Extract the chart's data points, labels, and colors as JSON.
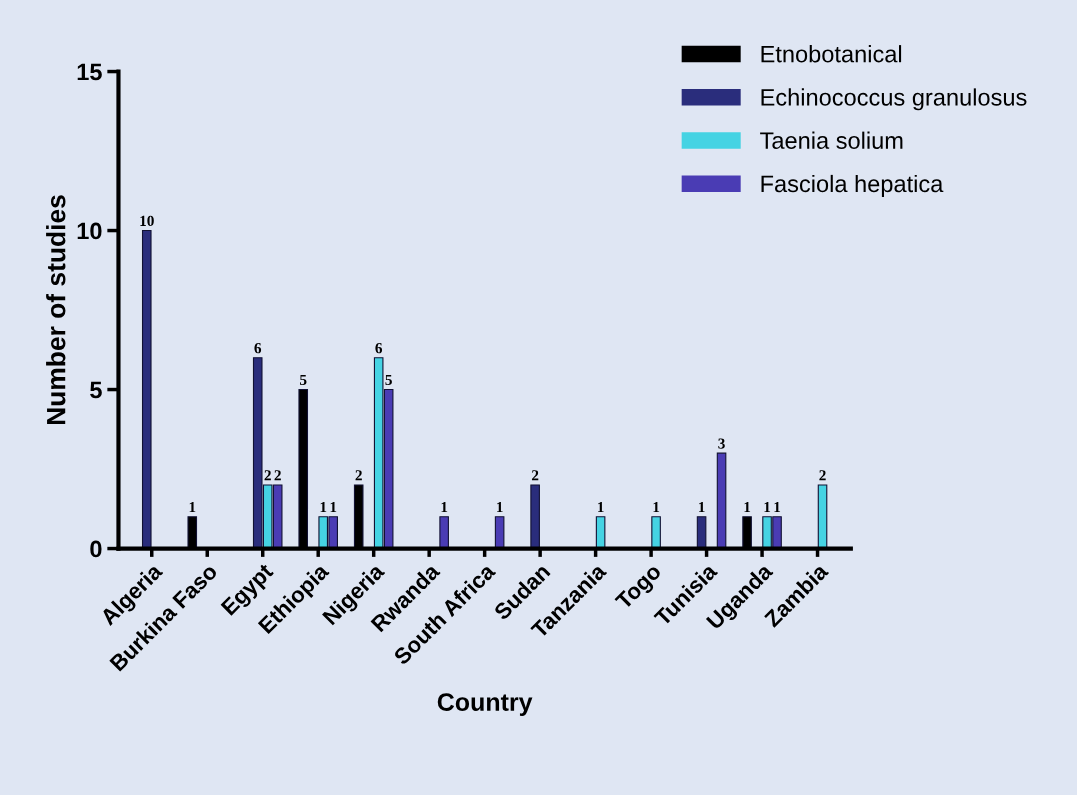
{
  "chart_data": {
    "type": "bar",
    "xlabel": "Country",
    "ylabel": "Number of studies",
    "categories": [
      "Algeria",
      "Burkina Faso",
      "Egypt",
      "Ethiopia",
      "Nigeria",
      "Rwanda",
      "South Africa",
      "Sudan",
      "Tanzania",
      "Togo",
      "Tunisia",
      "Uganda",
      "Zambia"
    ],
    "series": [
      {
        "name": "Etnobotanical",
        "color": "#000000",
        "values": [
          null,
          1,
          null,
          5,
          2,
          null,
          null,
          null,
          null,
          null,
          null,
          1,
          null
        ]
      },
      {
        "name": "Echinococcus granulosus",
        "color": "#2a2d7c",
        "values": [
          10,
          null,
          6,
          null,
          null,
          null,
          null,
          2,
          null,
          null,
          1,
          null,
          null
        ]
      },
      {
        "name": "Taenia solium",
        "color": "#45d3e3",
        "values": [
          null,
          null,
          2,
          1,
          6,
          null,
          null,
          null,
          1,
          1,
          null,
          1,
          2
        ]
      },
      {
        "name": "Fasciola hepatica",
        "color": "#4a3cb4",
        "values": [
          null,
          null,
          2,
          1,
          5,
          1,
          1,
          null,
          null,
          null,
          3,
          1,
          null
        ]
      }
    ],
    "ylim": [
      0,
      15
    ],
    "yticks": [
      0,
      5,
      10,
      15
    ],
    "data_labels": true,
    "legend": "top right",
    "grid": false
  }
}
